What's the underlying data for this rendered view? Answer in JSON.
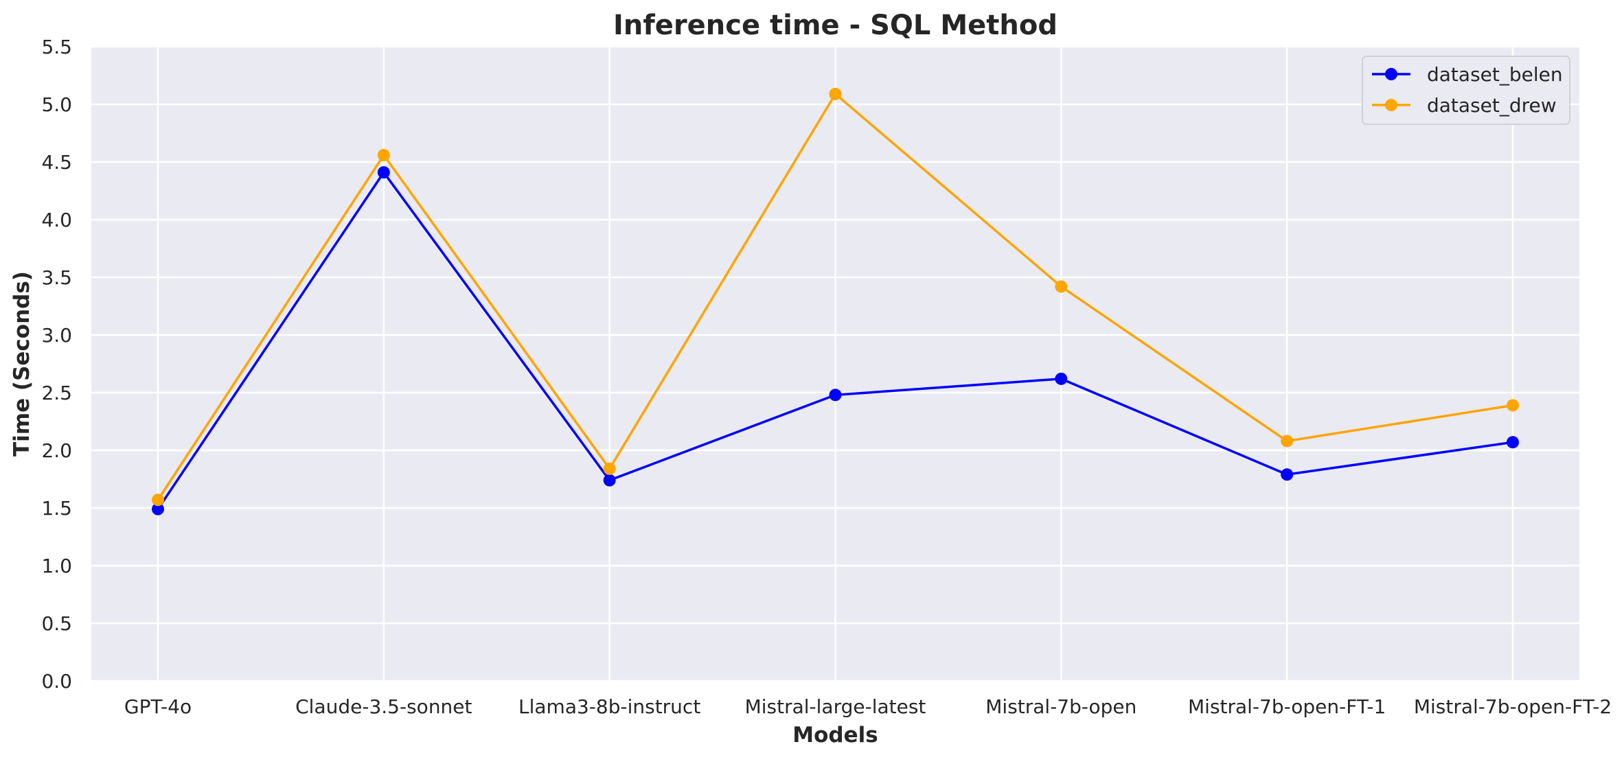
{
  "chart_data": {
    "type": "line",
    "title": "Inference time - SQL Method",
    "xlabel": "Models",
    "ylabel": "Time (Seconds)",
    "categories": [
      "GPT-4o",
      "Claude-3.5-sonnet",
      "Llama3-8b-instruct",
      "Mistral-large-latest",
      "Mistral-7b-open",
      "Mistral-7b-open-FT-1",
      "Mistral-7b-open-FT-2"
    ],
    "ylim": [
      0,
      5.5
    ],
    "yticks": [
      "0.0",
      "0.5",
      "1.0",
      "1.5",
      "2.0",
      "2.5",
      "3.0",
      "3.5",
      "4.0",
      "4.5",
      "5.0",
      "5.5"
    ],
    "series": [
      {
        "name": "dataset_belen",
        "color": "#0000ff",
        "values": [
          1.49,
          4.41,
          1.74,
          2.48,
          2.62,
          1.79,
          2.07
        ]
      },
      {
        "name": "dataset_drew",
        "color": "#ffa500",
        "values": [
          1.57,
          4.56,
          1.84,
          5.09,
          3.42,
          2.08,
          2.39
        ]
      }
    ],
    "grid": true,
    "legend_position": "top-right",
    "plot_background": "#eaeaf2",
    "grid_color": "#ffffff"
  }
}
